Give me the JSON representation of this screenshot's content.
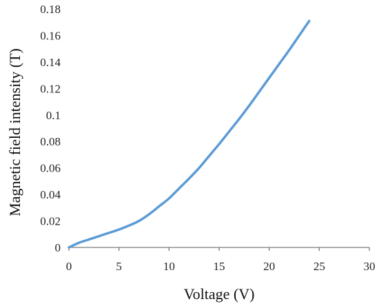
{
  "chart_data": {
    "type": "line",
    "title": "",
    "xlabel": "Voltage (V)",
    "ylabel": "Magnetic field intensity (T)",
    "xlim": [
      0,
      30
    ],
    "ylim": [
      0,
      0.18
    ],
    "xticks": [
      "0",
      "5",
      "10",
      "15",
      "20",
      "25",
      "30"
    ],
    "yticks": [
      "0",
      "0.02",
      "0.04",
      "0.06",
      "0.08",
      "0.1",
      "0.12",
      "0.14",
      "0.16",
      "0.18"
    ],
    "grid": false,
    "legend": "none",
    "series": [
      {
        "color": "#5b9bd5",
        "x": [
          0,
          1,
          2,
          3,
          4,
          5,
          6,
          7,
          8,
          9,
          10,
          11,
          12,
          13,
          14,
          15,
          16,
          17,
          18,
          19,
          20,
          21,
          22,
          23,
          24
        ],
        "y": [
          0,
          0.0035,
          0.006,
          0.0085,
          0.011,
          0.0135,
          0.0165,
          0.02,
          0.025,
          0.031,
          0.037,
          0.0445,
          0.052,
          0.06,
          0.069,
          0.078,
          0.0875,
          0.097,
          0.107,
          0.1175,
          0.128,
          0.1385,
          0.149,
          0.16,
          0.171
        ]
      }
    ]
  }
}
